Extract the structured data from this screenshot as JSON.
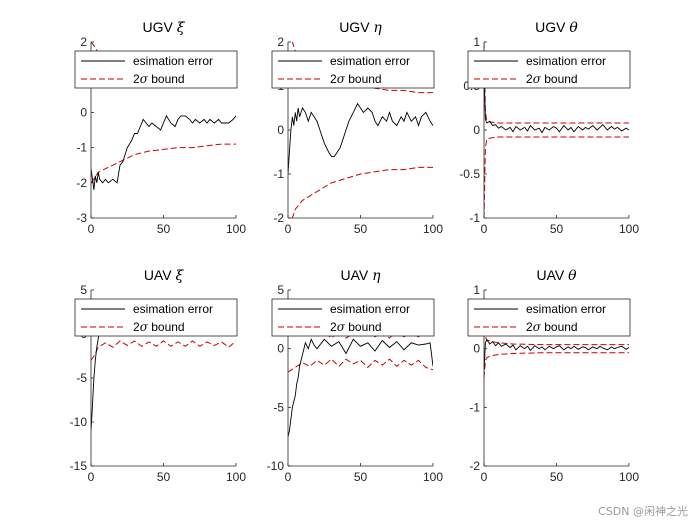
{
  "watermark": "CSDN @闲神之光",
  "legend_entries": {
    "error": "esimation error",
    "bound_symbol": "2σ",
    "bound_suffix": " bound"
  },
  "colors": {
    "error": "#000000",
    "bound": "#cc0000",
    "axes": "#262626",
    "background": "#ffffff"
  },
  "chart_data": [
    {
      "type": "line",
      "title_prefix": "UGV ",
      "title_symbol": "ξ",
      "xlim": [
        0,
        100
      ],
      "ylim": [
        -3,
        2
      ],
      "xticks": [
        0,
        50,
        100
      ],
      "yticks": [
        -3,
        -2,
        -1,
        0,
        1,
        2
      ],
      "legend_position": "top",
      "series": [
        {
          "role": "error",
          "x": [
            0,
            2,
            3,
            4,
            5,
            6,
            8,
            10,
            12,
            15,
            18,
            20,
            22,
            25,
            28,
            30,
            32,
            34,
            36,
            38,
            40,
            42,
            45,
            48,
            50,
            52,
            55,
            58,
            60,
            62,
            65,
            68,
            70,
            72,
            75,
            78,
            80,
            82,
            85,
            88,
            90,
            92,
            95,
            98,
            100
          ],
          "y": [
            -1.6,
            -2.2,
            -1.8,
            -2.0,
            -1.7,
            -1.9,
            -2.0,
            -1.9,
            -2.0,
            -1.9,
            -2.0,
            -1.5,
            -1.4,
            -1.0,
            -0.8,
            -0.6,
            -0.6,
            -0.4,
            -0.2,
            -0.3,
            -0.4,
            -0.3,
            -0.4,
            -0.5,
            -0.3,
            -0.1,
            -0.3,
            -0.4,
            -0.2,
            -0.1,
            -0.1,
            -0.2,
            -0.3,
            -0.2,
            -0.3,
            -0.2,
            -0.3,
            -0.2,
            -0.3,
            -0.2,
            -0.3,
            -0.3,
            -0.3,
            -0.2,
            -0.1
          ]
        },
        {
          "role": "bound_upper",
          "x": [
            0,
            2,
            5,
            10,
            20,
            30,
            40,
            50,
            60,
            70,
            80,
            90,
            100
          ],
          "y": [
            2.0,
            1.9,
            1.7,
            1.5,
            1.3,
            1.2,
            1.1,
            1.05,
            1.0,
            1.0,
            0.95,
            0.9,
            0.9
          ]
        },
        {
          "role": "bound_lower",
          "x": [
            0,
            2,
            5,
            10,
            20,
            30,
            40,
            50,
            60,
            70,
            80,
            90,
            100
          ],
          "y": [
            -2.0,
            -1.9,
            -1.7,
            -1.6,
            -1.4,
            -1.2,
            -1.1,
            -1.05,
            -1.0,
            -1.0,
            -0.95,
            -0.9,
            -0.9
          ]
        }
      ]
    },
    {
      "type": "line",
      "title_prefix": "UGV ",
      "title_symbol": "η",
      "xlim": [
        0,
        100
      ],
      "ylim": [
        -2,
        2
      ],
      "xticks": [
        0,
        50,
        100
      ],
      "yticks": [
        -2,
        -1,
        0,
        1,
        2
      ],
      "legend_position": "top",
      "series": [
        {
          "role": "error",
          "x": [
            0,
            1,
            2,
            3,
            4,
            5,
            6,
            7,
            8,
            10,
            12,
            14,
            16,
            18,
            20,
            22,
            25,
            28,
            30,
            32,
            34,
            36,
            38,
            40,
            42,
            45,
            48,
            50,
            52,
            55,
            58,
            60,
            62,
            65,
            68,
            70,
            72,
            75,
            78,
            80,
            82,
            85,
            88,
            90,
            92,
            95,
            98,
            100
          ],
          "y": [
            -1.0,
            -0.5,
            0.0,
            0.3,
            0.1,
            0.4,
            0.2,
            0.5,
            0.3,
            0.5,
            0.4,
            0.2,
            0.4,
            0.3,
            0.2,
            0.0,
            -0.3,
            -0.5,
            -0.6,
            -0.6,
            -0.5,
            -0.4,
            -0.2,
            0.0,
            0.2,
            0.4,
            0.6,
            0.5,
            0.4,
            0.5,
            0.4,
            0.2,
            0.1,
            0.3,
            0.2,
            0.4,
            0.2,
            0.1,
            0.3,
            0.2,
            0.4,
            0.2,
            0.3,
            0.1,
            0.3,
            0.4,
            0.2,
            0.1
          ]
        },
        {
          "role": "bound_upper",
          "x": [
            0,
            2,
            5,
            10,
            20,
            30,
            40,
            50,
            60,
            70,
            80,
            90,
            100
          ],
          "y": [
            2.0,
            2.1,
            1.8,
            1.6,
            1.4,
            1.2,
            1.1,
            1.0,
            0.95,
            0.9,
            0.9,
            0.85,
            0.85
          ]
        },
        {
          "role": "bound_lower",
          "x": [
            0,
            2,
            5,
            10,
            20,
            30,
            40,
            50,
            60,
            70,
            80,
            90,
            100
          ],
          "y": [
            -2.0,
            -2.1,
            -1.8,
            -1.6,
            -1.4,
            -1.2,
            -1.1,
            -1.0,
            -0.95,
            -0.9,
            -0.9,
            -0.85,
            -0.85
          ]
        }
      ]
    },
    {
      "type": "line",
      "title_prefix": "UGV ",
      "title_symbol": "θ",
      "xlim": [
        0,
        100
      ],
      "ylim": [
        -1,
        1
      ],
      "xticks": [
        0,
        50,
        100
      ],
      "yticks": [
        -1,
        -0.5,
        0,
        0.5,
        1
      ],
      "legend_position": "top",
      "series": [
        {
          "role": "error",
          "x": [
            0,
            1,
            2,
            4,
            6,
            8,
            10,
            12,
            15,
            18,
            20,
            22,
            25,
            28,
            30,
            32,
            35,
            38,
            40,
            42,
            45,
            48,
            50,
            52,
            55,
            58,
            60,
            62,
            65,
            68,
            70,
            72,
            75,
            78,
            80,
            82,
            85,
            88,
            90,
            92,
            95,
            98,
            100
          ],
          "y": [
            0.7,
            0.12,
            0.08,
            0.1,
            0.05,
            0.06,
            0.02,
            0.04,
            0.0,
            0.03,
            -0.02,
            0.04,
            0.0,
            0.03,
            -0.01,
            0.05,
            0.0,
            0.02,
            -0.03,
            0.03,
            0.0,
            0.04,
            0.02,
            -0.02,
            0.05,
            0.0,
            0.03,
            -0.02,
            0.04,
            0.0,
            0.03,
            0.01,
            0.05,
            0.0,
            0.03,
            0.06,
            0.0,
            0.04,
            0.01,
            0.03,
            -0.01,
            0.02,
            0.0
          ]
        },
        {
          "role": "bound_upper",
          "x": [
            0,
            1,
            2,
            5,
            10,
            100
          ],
          "y": [
            1.0,
            0.2,
            0.1,
            0.09,
            0.08,
            0.08
          ]
        },
        {
          "role": "bound_lower",
          "x": [
            0,
            1,
            2,
            5,
            10,
            100
          ],
          "y": [
            -1.0,
            -0.2,
            -0.1,
            -0.09,
            -0.08,
            -0.08
          ]
        }
      ]
    },
    {
      "type": "line",
      "title_prefix": "UAV ",
      "title_symbol": "ξ",
      "xlim": [
        0,
        100
      ],
      "ylim": [
        -15,
        5
      ],
      "xticks": [
        0,
        50,
        100
      ],
      "yticks": [
        -15,
        -10,
        -5,
        0,
        5
      ],
      "legend_position": "top",
      "series": [
        {
          "role": "error",
          "x": [
            0,
            1,
            2,
            3,
            4,
            5,
            6,
            8,
            10,
            12,
            15,
            18,
            20,
            25,
            30,
            35,
            40,
            45,
            50,
            55,
            60,
            65,
            70,
            75,
            80,
            85,
            90,
            95,
            100
          ],
          "y": [
            -11,
            -8,
            -5,
            -3,
            -1.5,
            -0.5,
            0.5,
            0.3,
            0.8,
            0.4,
            0.6,
            0.2,
            0.8,
            0.4,
            0.6,
            0.3,
            0.7,
            0.4,
            0.6,
            0.3,
            0.8,
            0.5,
            0.4,
            0.7,
            0.3,
            0.6,
            0.5,
            0.8,
            0.6
          ]
        },
        {
          "role": "bound_upper",
          "x": [
            0,
            2,
            5,
            10,
            15,
            20,
            25,
            30,
            35,
            40,
            45,
            50,
            55,
            60,
            65,
            70,
            75,
            80,
            85,
            90,
            95,
            100
          ],
          "y": [
            3,
            2.5,
            1.5,
            1.0,
            1.5,
            0.8,
            1.3,
            0.8,
            1.4,
            0.9,
            1.4,
            0.8,
            1.4,
            0.9,
            1.4,
            0.8,
            1.4,
            0.9,
            1.3,
            0.9,
            1.5,
            2.5
          ]
        },
        {
          "role": "bound_lower",
          "x": [
            0,
            2,
            5,
            10,
            15,
            20,
            25,
            30,
            35,
            40,
            45,
            50,
            55,
            60,
            65,
            70,
            75,
            80,
            85,
            90,
            95,
            100
          ],
          "y": [
            -3,
            -2.5,
            -1.5,
            -1.0,
            -1.5,
            -0.8,
            -1.3,
            -0.8,
            -1.4,
            -0.9,
            -1.4,
            -0.8,
            -1.4,
            -0.9,
            -1.4,
            -0.8,
            -1.4,
            -0.9,
            -1.3,
            -0.9,
            -1.5,
            -0.8
          ]
        }
      ]
    },
    {
      "type": "line",
      "title_prefix": "UAV ",
      "title_symbol": "η",
      "xlim": [
        0,
        100
      ],
      "ylim": [
        -10,
        5
      ],
      "xticks": [
        0,
        50,
        100
      ],
      "yticks": [
        -10,
        -5,
        0,
        5
      ],
      "legend_position": "top",
      "series": [
        {
          "role": "error",
          "x": [
            0,
            1,
            2,
            3,
            4,
            5,
            6,
            7,
            8,
            10,
            12,
            14,
            16,
            18,
            20,
            25,
            30,
            35,
            40,
            45,
            50,
            55,
            60,
            65,
            70,
            75,
            80,
            85,
            90,
            95,
            98,
            100
          ],
          "y": [
            -7.5,
            -7.0,
            -6.0,
            -5.0,
            -4.5,
            -4.0,
            -3.0,
            -2.5,
            -1.5,
            -0.5,
            0.5,
            0.0,
            0.8,
            0.3,
            0.0,
            0.8,
            0.2,
            0.6,
            -0.4,
            0.8,
            0.2,
            0.5,
            -0.2,
            0.7,
            0.1,
            0.6,
            -0.1,
            0.5,
            0.3,
            0.4,
            0.5,
            -1.5
          ]
        },
        {
          "role": "bound_upper",
          "x": [
            0,
            5,
            10,
            15,
            20,
            25,
            30,
            35,
            40,
            45,
            50,
            55,
            60,
            65,
            70,
            75,
            80,
            85,
            90,
            95,
            100
          ],
          "y": [
            2.0,
            1.6,
            1.2,
            1.5,
            1.0,
            1.4,
            0.9,
            1.5,
            0.9,
            1.3,
            1.0,
            1.6,
            1.0,
            1.4,
            0.9,
            1.5,
            1.0,
            1.4,
            1.0,
            1.6,
            1.8
          ]
        },
        {
          "role": "bound_lower",
          "x": [
            0,
            5,
            10,
            15,
            20,
            25,
            30,
            35,
            40,
            45,
            50,
            55,
            60,
            65,
            70,
            75,
            80,
            85,
            90,
            95,
            100
          ],
          "y": [
            -2.0,
            -1.6,
            -1.2,
            -1.5,
            -1.0,
            -1.4,
            -0.9,
            -1.5,
            -0.9,
            -1.3,
            -1.0,
            -1.6,
            -1.0,
            -1.4,
            -0.9,
            -1.5,
            -1.0,
            -1.4,
            -1.0,
            -1.6,
            -1.8
          ]
        }
      ]
    },
    {
      "type": "line",
      "title_prefix": "UAV ",
      "title_symbol": "θ",
      "xlim": [
        0,
        100
      ],
      "ylim": [
        -2,
        1
      ],
      "xticks": [
        0,
        50,
        100
      ],
      "yticks": [
        -2,
        -1,
        0,
        1
      ],
      "legend_position": "top",
      "series": [
        {
          "role": "error",
          "x": [
            0,
            1,
            2,
            4,
            6,
            8,
            10,
            12,
            15,
            18,
            20,
            22,
            25,
            28,
            30,
            32,
            35,
            38,
            40,
            42,
            45,
            48,
            50,
            52,
            55,
            58,
            60,
            62,
            65,
            68,
            70,
            72,
            75,
            78,
            80,
            82,
            85,
            88,
            90,
            92,
            95,
            98,
            100
          ],
          "y": [
            -0.4,
            0.1,
            0.15,
            0.08,
            0.12,
            0.05,
            0.1,
            0.04,
            0.08,
            0.02,
            0.06,
            -0.02,
            0.05,
            0.0,
            0.04,
            -0.03,
            0.05,
            0.0,
            0.03,
            -0.02,
            0.04,
            0.0,
            0.03,
            0.05,
            -0.02,
            0.03,
            0.0,
            0.04,
            -0.01,
            0.03,
            0.02,
            -0.02,
            0.03,
            0.0,
            0.04,
            0.01,
            -0.02,
            0.03,
            0.0,
            0.02,
            0.04,
            -0.01,
            0.02
          ]
        },
        {
          "role": "bound_upper",
          "x": [
            0,
            1,
            2,
            5,
            10,
            20,
            40,
            60,
            80,
            100
          ],
          "y": [
            0.5,
            0.2,
            0.15,
            0.12,
            0.1,
            0.08,
            0.07,
            0.07,
            0.07,
            0.07
          ]
        },
        {
          "role": "bound_lower",
          "x": [
            0,
            1,
            2,
            5,
            10,
            20,
            40,
            60,
            80,
            100
          ],
          "y": [
            -0.5,
            -0.2,
            -0.15,
            -0.12,
            -0.1,
            -0.08,
            -0.07,
            -0.07,
            -0.07,
            -0.07
          ]
        }
      ]
    }
  ]
}
